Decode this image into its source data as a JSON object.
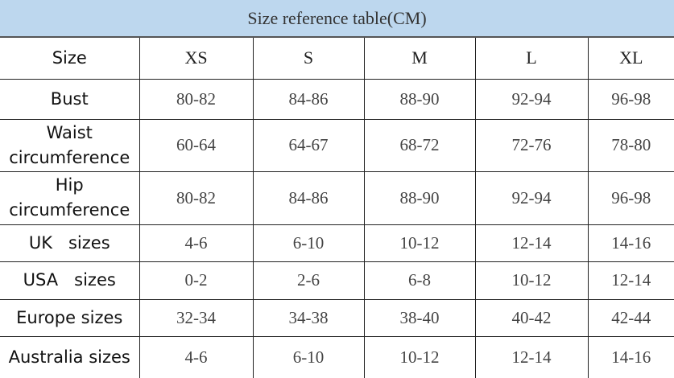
{
  "title": "Size reference table(CM)",
  "header": [
    "Size",
    "XS",
    "S",
    "M",
    "L",
    "XL"
  ],
  "rows": [
    {
      "label": [
        "Bust"
      ],
      "values": [
        "80-82",
        "84-86",
        "88-90",
        "92-94",
        "96-98"
      ]
    },
    {
      "label": [
        "Waist",
        "circumference"
      ],
      "values": [
        "60-64",
        "64-67",
        "68-72",
        "72-76",
        "78-80"
      ]
    },
    {
      "label": [
        "Hip",
        "circumference"
      ],
      "values": [
        "80-82",
        "84-86",
        "88-90",
        "92-94",
        "96-98"
      ]
    },
    {
      "label": [
        "UK   sizes"
      ],
      "values": [
        "4-6",
        "6-10",
        "10-12",
        "12-14",
        "14-16"
      ]
    },
    {
      "label": [
        "USA   sizes"
      ],
      "values": [
        "0-2",
        "2-6",
        "6-8",
        "10-12",
        "12-14"
      ]
    },
    {
      "label": [
        "Europe sizes"
      ],
      "values": [
        "32-34",
        "34-38",
        "38-40",
        "40-42",
        "42-44"
      ]
    },
    {
      "label": [
        "Australia sizes"
      ],
      "values": [
        "4-6",
        "6-10",
        "10-12",
        "12-14",
        "14-16"
      ]
    }
  ]
}
